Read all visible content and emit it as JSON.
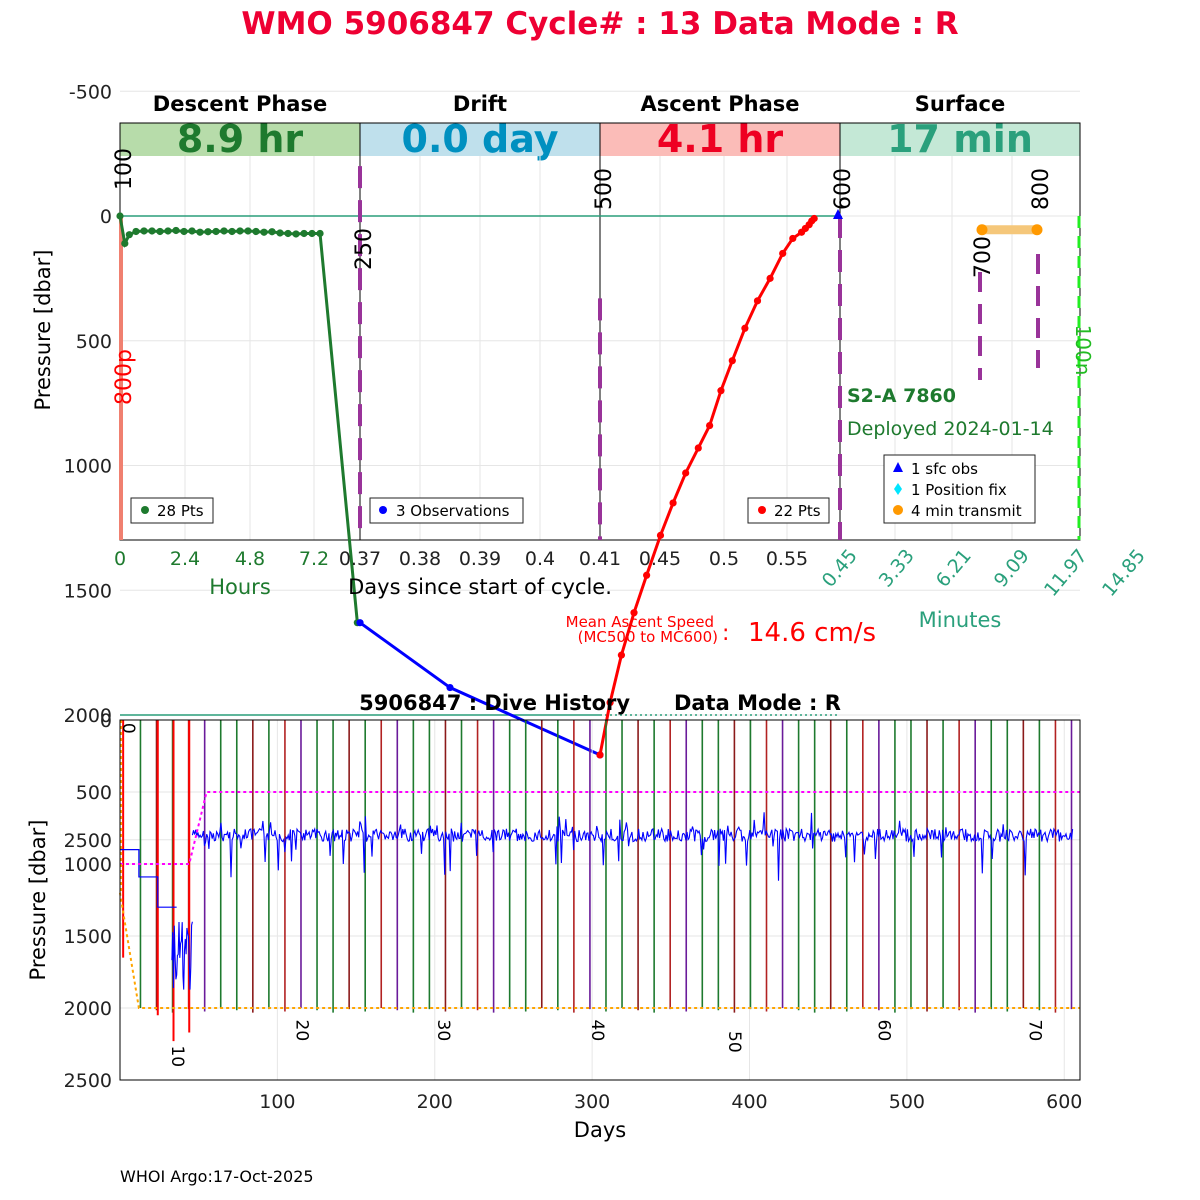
{
  "page": {
    "title": "WMO 5906847   Cycle# : 13   Data Mode : R",
    "footer": "WHOI Argo:17-Oct-2025"
  },
  "colors": {
    "descent": "#1e7a2e",
    "drift": "#0000ff",
    "ascent": "#ff0000",
    "surface": "#2aa07c",
    "title": "#ee0033",
    "mission": "#993399",
    "transmit": "#ff9900",
    "drift_target": "#ff00ff",
    "profile_target": "#ffa500"
  },
  "cycle_chart": {
    "phases": [
      {
        "name": "Descent Phase",
        "duration": "8.9 hr",
        "band_color": "#b7dcaa",
        "text_color": "#1e7a2e"
      },
      {
        "name": "Drift",
        "duration": "0.0 day",
        "band_color": "#bfe0ec",
        "text_color": "#0090c0"
      },
      {
        "name": "Ascent Phase",
        "duration": "4.1 hr",
        "band_color": "#fbbcb8",
        "text_color": "#ee0022"
      },
      {
        "name": "Surface",
        "duration": "17 min",
        "band_color": "#c4e8d6",
        "text_color": "#2aa07c"
      }
    ],
    "ylabel": "Pressure [dbar]",
    "y_ticks": [
      "-500",
      "0",
      "500",
      "1000",
      "1500",
      "2000",
      "2500"
    ],
    "descent_axis": {
      "ticks": [
        "0",
        "2.4",
        "4.8",
        "7.2"
      ],
      "label": "Hours"
    },
    "days_axis": {
      "ticks": [
        "0.37",
        "0.38",
        "0.39",
        "0.4",
        "0.41",
        "0.45",
        "0.5",
        "0.55"
      ],
      "label": "Days since start of cycle."
    },
    "surface_axis": {
      "ticks": [
        "0.45",
        "3.33",
        "6.21",
        "9.09",
        "11.97",
        "14.85"
      ],
      "label": "Minutes"
    },
    "mission_codes": [
      "100",
      "250",
      "500",
      "600",
      "700",
      "800"
    ],
    "park_label": "800p",
    "right_label": "100n",
    "float_info": {
      "model": "S2-A 7860",
      "deployed": "Deployed 2024-01-14"
    },
    "legends": {
      "descent": "28 Pts",
      "drift": "3 Observations",
      "ascent": "22 Pts",
      "surface": [
        "1 sfc obs",
        "1 Position fix",
        "4 min transmit"
      ]
    },
    "speed": {
      "label_line1": "Mean Ascent Speed",
      "label_line2": "(MC500 to MC600)",
      "sep": ":",
      "value": "14.6 cm/s"
    }
  },
  "chart_data": [
    {
      "type": "line",
      "title": "WMO 5906847   Cycle# : 13   Data Mode : R",
      "ylabel": "Pressure [dbar]",
      "ylim": [
        2600,
        -600
      ],
      "series": [
        {
          "phase": "descent",
          "x_unit": "hours",
          "x": [
            0,
            0.18,
            0.35,
            0.6,
            0.9,
            1.2,
            1.5,
            1.8,
            2.1,
            2.4,
            2.7,
            3.0,
            3.3,
            3.6,
            3.9,
            4.2,
            4.5,
            4.8,
            5.1,
            5.4,
            5.7,
            6.0,
            6.3,
            6.6,
            6.9,
            7.2,
            7.5,
            8.9
          ],
          "y": [
            0,
            110,
            75,
            62,
            60,
            60,
            62,
            60,
            58,
            62,
            60,
            65,
            63,
            62,
            60,
            62,
            60,
            60,
            62,
            65,
            63,
            68,
            70,
            72,
            70,
            70,
            70,
            1630
          ]
        },
        {
          "phase": "drift",
          "x_unit": "days",
          "x": [
            0.37,
            0.385,
            0.41
          ],
          "y": [
            1630,
            1890,
            2160
          ]
        },
        {
          "phase": "ascent",
          "x_unit": "days",
          "x": [
            0.41,
            0.418,
            0.427,
            0.437,
            0.447,
            0.458,
            0.468,
            0.478,
            0.488,
            0.497,
            0.506,
            0.515,
            0.525,
            0.535,
            0.545,
            0.555,
            0.563,
            0.57,
            0.573,
            0.576,
            0.578,
            0.58
          ],
          "y": [
            2160,
            1950,
            1760,
            1590,
            1440,
            1280,
            1150,
            1030,
            930,
            840,
            700,
            580,
            450,
            340,
            250,
            150,
            90,
            65,
            50,
            35,
            20,
            10
          ]
        },
        {
          "phase": "surface",
          "x_unit": "minutes",
          "x": [
            0.45
          ],
          "y": [
            0
          ]
        }
      ]
    },
    {
      "type": "line",
      "title": "5906847 : Dive History      Data Mode : R",
      "xlabel": "Days",
      "ylabel": "Pressure [dbar]",
      "xlim": [
        0,
        610
      ],
      "ylim": [
        2500,
        0
      ],
      "x_ticks": [
        "100",
        "200",
        "300",
        "400",
        "500",
        "600"
      ],
      "y_ticks": [
        "0",
        "500",
        "1000",
        "1500",
        "2000",
        "2500"
      ],
      "cycle_labels": [
        {
          "text": "0",
          "day": 2,
          "pressure": 20
        },
        {
          "text": "10",
          "day": 33,
          "pressure": 2260
        },
        {
          "text": "20",
          "day": 112,
          "pressure": 2080
        },
        {
          "text": "30",
          "day": 202,
          "pressure": 2080
        },
        {
          "text": "40",
          "day": 300,
          "pressure": 2080
        },
        {
          "text": "50",
          "day": 387,
          "pressure": 2160
        },
        {
          "text": "60",
          "day": 482,
          "pressure": 2080
        },
        {
          "text": "70",
          "day": 578,
          "pressure": 2080
        }
      ],
      "series": [
        {
          "name": "",
          "description": "drift pressure",
          "x": [
            0,
            12,
            12,
            24,
            24,
            36,
            36,
            46,
            55,
            600
          ],
          "y": [
            900,
            900,
            1090,
            1090,
            1300,
            1300,
            1650,
            850,
            800,
            800
          ]
        },
        {
          "name": "",
          "description": "drift target",
          "x": [
            0,
            44,
            55,
            610
          ],
          "y": [
            1000,
            1000,
            500,
            500
          ]
        },
        {
          "name": "",
          "description": "profile target",
          "x": [
            0,
            12,
            610
          ],
          "y": [
            1200,
            2000,
            2000
          ]
        }
      ]
    }
  ]
}
